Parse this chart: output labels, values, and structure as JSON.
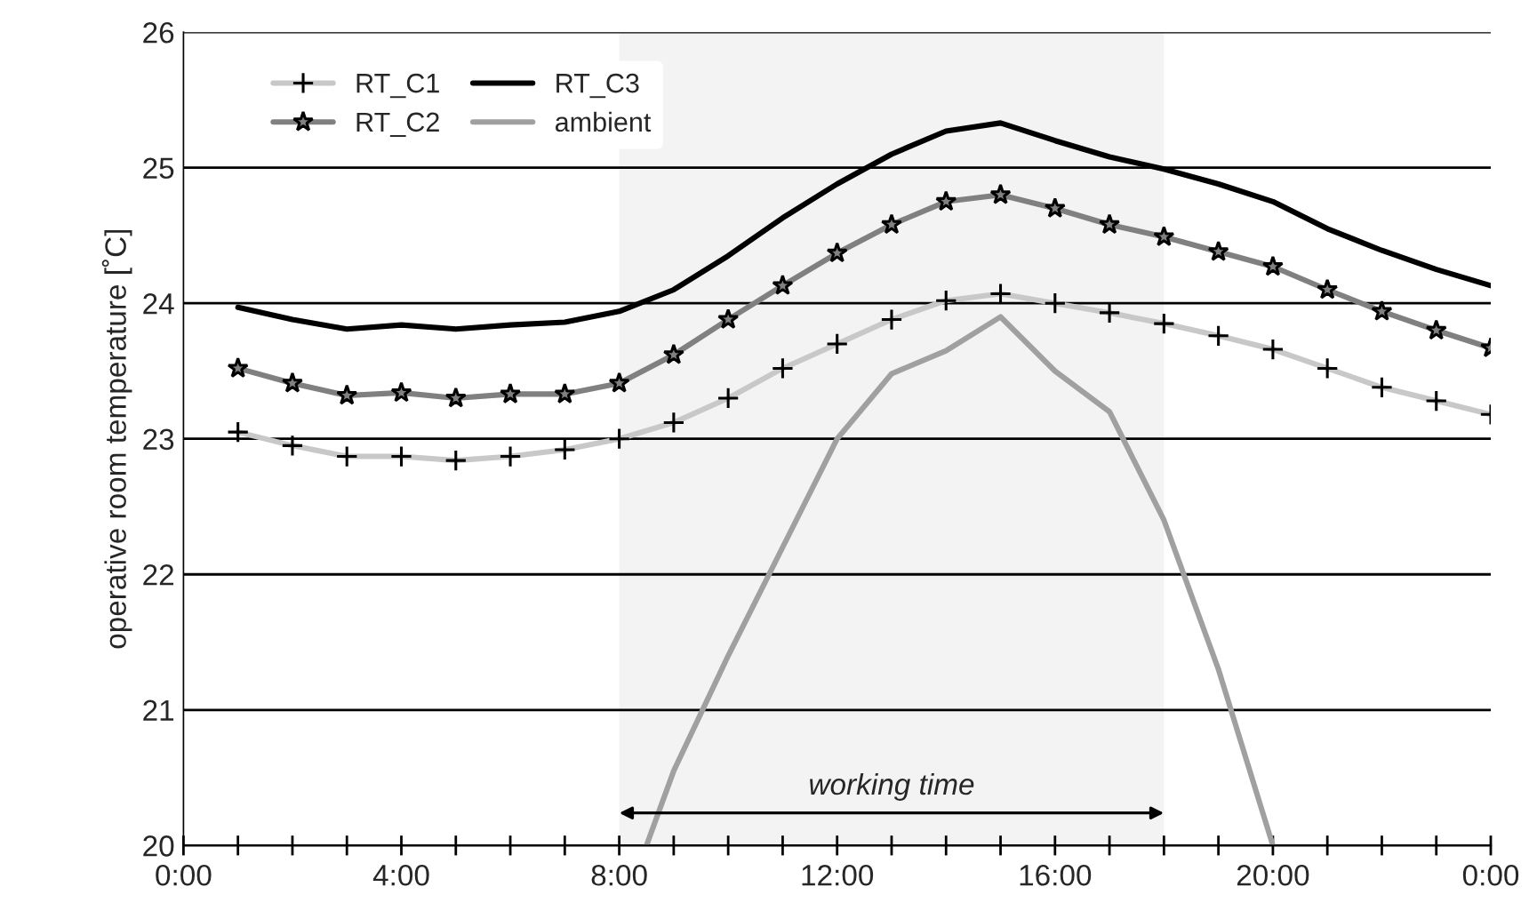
{
  "chart_data": {
    "type": "line",
    "ylabel": "operative room temperature [˚C]",
    "x": [
      1,
      2,
      3,
      4,
      5,
      6,
      7,
      8,
      9,
      10,
      11,
      12,
      13,
      14,
      15,
      16,
      17,
      18,
      19,
      20,
      21,
      22,
      23,
      24
    ],
    "series": [
      {
        "name": "RT_C1",
        "color": "#c8c8c8",
        "marker": "cross",
        "values": [
          23.05,
          22.95,
          22.87,
          22.87,
          22.84,
          22.87,
          22.92,
          23.0,
          23.12,
          23.3,
          23.52,
          23.7,
          23.88,
          24.02,
          24.07,
          24.0,
          23.93,
          23.85,
          23.76,
          23.66,
          23.52,
          23.38,
          23.28,
          23.18
        ]
      },
      {
        "name": "RT_C2",
        "color": "#808080",
        "marker": "star",
        "values": [
          23.52,
          23.41,
          23.32,
          23.34,
          23.3,
          23.33,
          23.33,
          23.41,
          23.62,
          23.88,
          24.13,
          24.37,
          24.58,
          24.75,
          24.8,
          24.7,
          24.58,
          24.49,
          24.38,
          24.27,
          24.1,
          23.94,
          23.8,
          23.67
        ]
      },
      {
        "name": "RT_C3",
        "color": "#000000",
        "marker": "none",
        "values": [
          23.97,
          23.88,
          23.81,
          23.84,
          23.81,
          23.84,
          23.86,
          23.94,
          24.1,
          24.35,
          24.63,
          24.88,
          25.1,
          25.27,
          25.33,
          25.2,
          25.08,
          24.99,
          24.88,
          24.75,
          24.55,
          24.39,
          24.25,
          24.13
        ]
      },
      {
        "name": "ambient",
        "color": "#a0a0a0",
        "marker": "none",
        "x": [
          8.5,
          9,
          10,
          11,
          12,
          13,
          14,
          15,
          16,
          17,
          18,
          19,
          20
        ],
        "values": [
          20.0,
          20.55,
          21.4,
          22.2,
          23.0,
          23.48,
          23.65,
          23.9,
          23.5,
          23.2,
          22.4,
          21.3,
          20.0
        ]
      }
    ],
    "xlim": [
      0,
      24
    ],
    "xticks": [
      {
        "value": 0,
        "label": "0:00"
      },
      {
        "value": 1,
        "label": null
      },
      {
        "value": 2,
        "label": null
      },
      {
        "value": 3,
        "label": null
      },
      {
        "value": 4,
        "label": "4:00"
      },
      {
        "value": 5,
        "label": null
      },
      {
        "value": 6,
        "label": null
      },
      {
        "value": 7,
        "label": null
      },
      {
        "value": 8,
        "label": "8:00"
      },
      {
        "value": 9,
        "label": null
      },
      {
        "value": 10,
        "label": null
      },
      {
        "value": 11,
        "label": null
      },
      {
        "value": 12,
        "label": "12:00"
      },
      {
        "value": 13,
        "label": null
      },
      {
        "value": 14,
        "label": null
      },
      {
        "value": 15,
        "label": null
      },
      {
        "value": 16,
        "label": "16:00"
      },
      {
        "value": 17,
        "label": null
      },
      {
        "value": 18,
        "label": null
      },
      {
        "value": 19,
        "label": null
      },
      {
        "value": 20,
        "label": "20:00"
      },
      {
        "value": 21,
        "label": null
      },
      {
        "value": 22,
        "label": null
      },
      {
        "value": 23,
        "label": null
      },
      {
        "value": 24,
        "label": "0:00"
      }
    ],
    "ylim": [
      20,
      26
    ],
    "yticks": [
      20,
      21,
      22,
      23,
      24,
      25,
      26
    ],
    "bands": [
      {
        "axis": "x",
        "from": 8,
        "to": 18,
        "label": "working time",
        "color": "#f3f3f3"
      }
    ],
    "grid": "y",
    "legend": "top left",
    "line_style": "solid"
  }
}
